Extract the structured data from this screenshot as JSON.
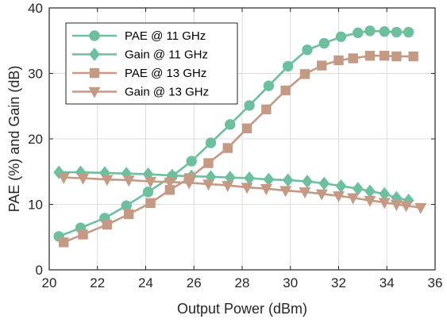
{
  "chart_data": {
    "type": "line",
    "title": "",
    "xlabel": "Output Power (dBm)",
    "ylabel": "PAE (%) and Gain (dB)",
    "xlim": [
      20,
      36
    ],
    "ylim": [
      0,
      40
    ],
    "xticks": [
      "20",
      "22",
      "24",
      "26",
      "28",
      "30",
      "32",
      "34",
      "36"
    ],
    "yticks": [
      "0",
      "10",
      "20",
      "30",
      "40"
    ],
    "grid": true,
    "legend_position": "top-left",
    "series": [
      {
        "name": "PAE @ 11 GHz",
        "color": "#6dbf9e",
        "marker": "circle",
        "x": [
          20.4,
          21.3,
          22.3,
          23.2,
          24.1,
          25.1,
          25.9,
          26.7,
          27.5,
          28.3,
          29.1,
          29.9,
          30.7,
          31.4,
          32.1,
          32.8,
          33.3,
          33.9,
          34.4,
          34.9
        ],
        "y": [
          5.1,
          6.4,
          7.9,
          9.8,
          11.9,
          14.3,
          16.6,
          19.4,
          22.2,
          25.1,
          28.1,
          31.1,
          33.6,
          34.6,
          35.6,
          36.2,
          36.5,
          36.4,
          36.3,
          36.3
        ]
      },
      {
        "name": "Gain @ 11 GHz",
        "color": "#6dbf9e",
        "marker": "diamond",
        "x": [
          20.4,
          21.3,
          22.3,
          23.2,
          24.1,
          25.1,
          25.9,
          26.7,
          27.5,
          28.3,
          29.1,
          29.9,
          30.7,
          31.4,
          32.1,
          32.8,
          33.3,
          33.9,
          34.4,
          34.9
        ],
        "y": [
          14.9,
          14.9,
          14.8,
          14.7,
          14.6,
          14.4,
          14.3,
          14.2,
          14.1,
          14.0,
          13.8,
          13.7,
          13.5,
          13.2,
          12.8,
          12.4,
          12.0,
          11.6,
          11.0,
          10.6
        ]
      },
      {
        "name": "PAE @ 13 GHz",
        "color": "#c49a85",
        "marker": "square",
        "x": [
          20.6,
          21.4,
          22.4,
          23.3,
          24.2,
          25.0,
          25.8,
          26.6,
          27.4,
          28.2,
          29.0,
          29.8,
          30.6,
          31.3,
          32.0,
          32.6,
          33.3,
          33.9,
          34.4,
          35.1
        ],
        "y": [
          4.2,
          5.4,
          6.9,
          8.5,
          10.2,
          12.2,
          14.0,
          16.3,
          18.6,
          21.6,
          24.5,
          27.4,
          29.9,
          31.2,
          32.0,
          32.3,
          32.7,
          32.7,
          32.6,
          32.6
        ]
      },
      {
        "name": "Gain @ 13 GHz",
        "color": "#c49a85",
        "marker": "triangle-down",
        "x": [
          20.6,
          21.4,
          22.4,
          23.3,
          24.2,
          25.0,
          25.8,
          26.6,
          27.4,
          28.2,
          29.0,
          29.8,
          30.6,
          31.3,
          32.0,
          32.6,
          33.3,
          33.9,
          34.4,
          34.8,
          35.4
        ],
        "y": [
          14.1,
          14.0,
          13.8,
          13.7,
          13.5,
          13.4,
          13.3,
          13.1,
          12.9,
          12.6,
          12.4,
          12.1,
          11.9,
          11.6,
          11.3,
          11.0,
          10.6,
          10.3,
          10.0,
          9.8,
          9.5
        ]
      }
    ]
  }
}
